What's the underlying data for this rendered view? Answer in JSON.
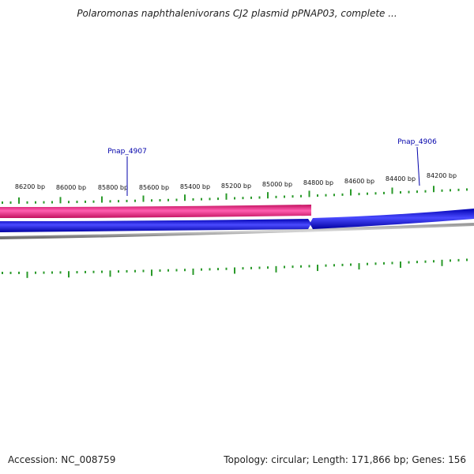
{
  "title": "Polaromonas naphthalenivorans CJ2 plasmid pPNAP03, complete ...",
  "footer": {
    "accession": "Accession: NC_008759",
    "summary": "Topology: circular; Length: 171,866 bp; Genes: 156"
  },
  "colors": {
    "forward_gene": "#e8197e",
    "reverse_gene": "#1010e0",
    "backbone": "#808080",
    "ticks": "#2a9a2a",
    "gene_label": "#0000aa"
  },
  "tick_labels": [
    "86200 bp",
    "86000 bp",
    "85800 bp",
    "85600 bp",
    "85400 bp",
    "85200 bp",
    "85000 bp",
    "84800 bp",
    "84600 bp",
    "84400 bp",
    "84200 bp"
  ],
  "genes": [
    {
      "name": "Pnap_4907",
      "strand": "forward"
    },
    {
      "name": "Pnap_4906",
      "strand": "reverse"
    }
  ]
}
